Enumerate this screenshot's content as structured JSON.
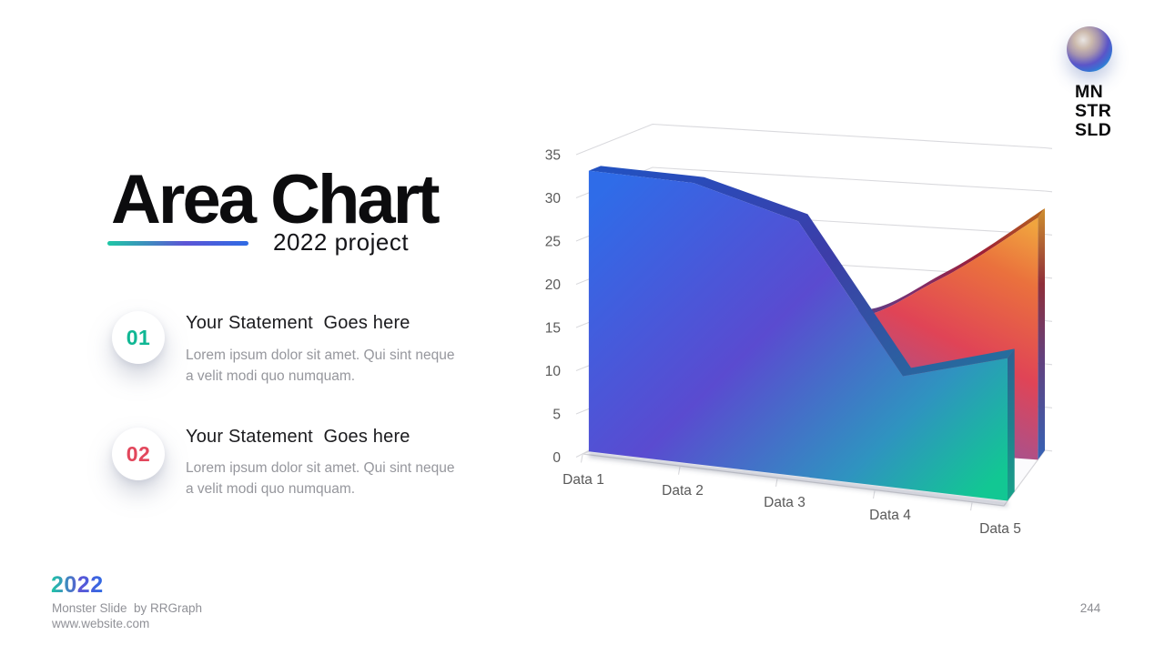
{
  "slide": {
    "title": "Area Chart",
    "subtitle": "2022 project",
    "accent_gradient": [
      "#1ec7a5",
      "#5c55d6",
      "#2f6be4"
    ],
    "statements": [
      {
        "number": "01",
        "number_color": "#10b794",
        "heading": "Your Statement  Goes here",
        "body": "Lorem ipsum dolor sit amet. Qui sint neque a velit modi quo numquam."
      },
      {
        "number": "02",
        "number_color": "#e2475c",
        "heading": "Your Statement  Goes here",
        "body": "Lorem ipsum dolor sit amet. Qui sint neque a velit modi quo numquam."
      }
    ],
    "logo": {
      "lines": [
        "MN",
        "STR",
        "SLD"
      ]
    },
    "footer": {
      "year": "2022",
      "credit": "Monster Slide  by RRGraph",
      "website": "www.website.com",
      "page": "244"
    }
  },
  "chart_data": {
    "type": "area",
    "projection": "3d",
    "title": "",
    "categories": [
      "Data 1",
      "Data 2",
      "Data 3",
      "Data 4",
      "Data 5"
    ],
    "series": [
      {
        "name": "back-series",
        "values": [
          26,
          24,
          15,
          20,
          28
        ],
        "note": "values at Data 1-3 estimated; occluded by front series",
        "depth": [
          0.83,
          1.0
        ],
        "smooth": true,
        "gradient": {
          "dir": [
            0.1,
            1,
            0.9,
            0
          ],
          "face": [
            [
              0,
              "#3d79e2"
            ],
            [
              0.35,
              "#9a559b"
            ],
            [
              0.62,
              "#e04456"
            ],
            [
              0.85,
              "#ea713d"
            ],
            [
              1,
              "#f0a43e"
            ]
          ],
          "band": [
            [
              0,
              "#2f55a8"
            ],
            [
              0.4,
              "#7c2e6e"
            ],
            [
              0.7,
              "#9e1f36"
            ],
            [
              1,
              "#b5641e"
            ]
          ],
          "side": [
            [
              0,
              "#cf8f2e"
            ],
            [
              0.3,
              "#8f2f3a"
            ],
            [
              0.6,
              "#63417e"
            ],
            [
              1,
              "#3562b5"
            ]
          ]
        }
      },
      {
        "name": "front-series",
        "values": [
          32.5,
          32.5,
          29.5,
          13,
          16.5
        ],
        "depth": [
          0.09,
          0.26
        ],
        "smooth": false,
        "gradient": {
          "dir": [
            0,
            0.1,
            1,
            0.9
          ],
          "face": [
            [
              0,
              "#2f6ce8"
            ],
            [
              0.45,
              "#5a4bd0"
            ],
            [
              0.78,
              "#2f93c0"
            ],
            [
              1,
              "#12c793"
            ]
          ],
          "band": [
            [
              0,
              "#2351c0"
            ],
            [
              0.5,
              "#3c3da8"
            ],
            [
              1,
              "#256e9d"
            ]
          ],
          "side": [
            [
              0,
              "#2e6093"
            ],
            [
              0.5,
              "#1f7f8e"
            ],
            [
              1,
              "#17a289"
            ]
          ]
        }
      }
    ],
    "ylim": [
      0,
      35
    ],
    "yticks": [
      0,
      5,
      10,
      15,
      20,
      25,
      30,
      35
    ],
    "grid": true,
    "legend_position": "none",
    "axis_color": "#595959",
    "grid_color": "#d9d9dd",
    "floor_fill": "#fbfbfd",
    "floor_edge": "#d6d6da"
  }
}
